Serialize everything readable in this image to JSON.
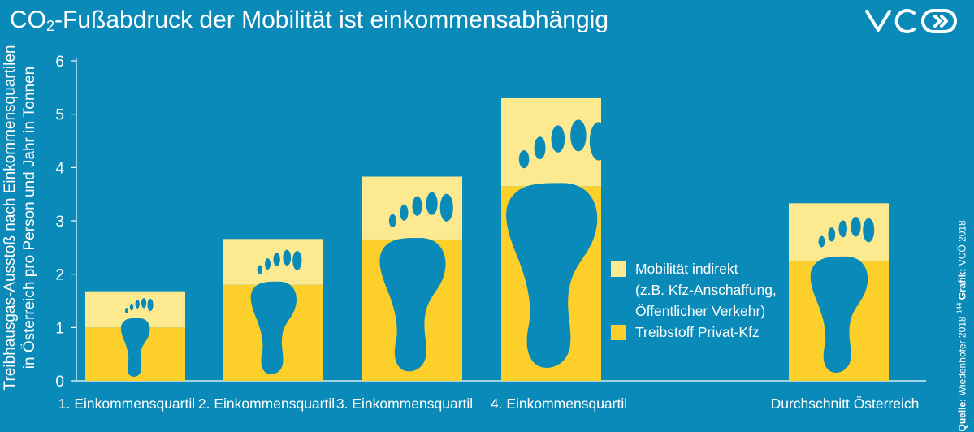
{
  "title": {
    "prefix": "CO",
    "subscript": "2",
    "rest": "-Fußabdruck der Mobilität ist einkommensabhängig"
  },
  "logo": {
    "text": "VCÖ",
    "icon": "vco-logo-icon"
  },
  "source": {
    "label": "Quelle:",
    "text": "Wiedenhofer 2018",
    "superscript": "144",
    "graphic_label": "Grafik:",
    "graphic_text": "VCÖ 2018"
  },
  "colors": {
    "background": "#0a8ab8",
    "fuel": "#fccf2a",
    "indirect": "#fde98f",
    "footprint": "#0a8ab8",
    "axis": "#ffffff"
  },
  "chart_data": {
    "type": "bar",
    "stacked": true,
    "title": "CO2-Fußabdruck der Mobilität ist einkommensabhängig",
    "ylabel_lines": [
      "Treibhausgas-Ausstoß nach Einkommensquartilen",
      "in Österreich pro Person und Jahr in Tonnen"
    ],
    "xlabel": "",
    "ylim": [
      0,
      6
    ],
    "yticks": [
      0,
      1,
      2,
      3,
      4,
      5,
      6
    ],
    "grid": false,
    "legend_position": "right",
    "categories": [
      "1. Einkommensquartil",
      "2. Einkommensquartil",
      "3. Einkommensquartil",
      "4. Einkommensquartil",
      "Durchschnitt Österreich"
    ],
    "series": [
      {
        "name": "Treibstoff Privat-Kfz",
        "values": [
          1.0,
          1.8,
          2.65,
          3.65,
          2.25
        ],
        "color": "#fccf2a"
      },
      {
        "name": "Mobilität indirekt",
        "name_detail_lines": [
          "(z.B. Kfz-Anschaffung,",
          "Öffentlicher Verkehr)"
        ],
        "values": [
          0.68,
          0.86,
          1.18,
          1.65,
          1.08
        ],
        "color": "#fde98f"
      }
    ]
  },
  "legend": [
    {
      "label": "Mobilität indirekt",
      "sub1": "(z.B. Kfz-Anschaffung,",
      "sub2": "Öffentlicher Verkehr)",
      "color": "#fde98f"
    },
    {
      "label": "Treibstoff Privat-Kfz",
      "color": "#fccf2a"
    }
  ]
}
